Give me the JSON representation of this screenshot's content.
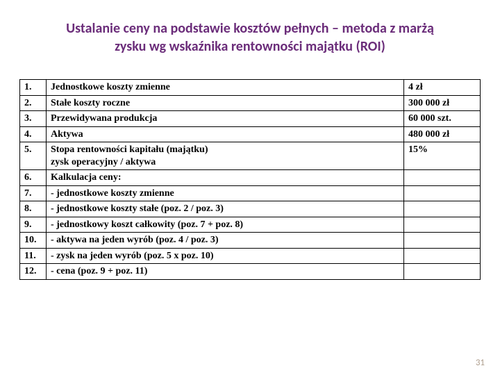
{
  "title": {
    "line1": "Ustalanie ceny na podstawie kosztów pełnych –   metoda z marżą",
    "line2": "zysku wg wskaźnika rentowności majątku (ROI)"
  },
  "rows": [
    {
      "num": "1.",
      "desc": "Jednostkowe koszty zmienne",
      "val": "  4 zł"
    },
    {
      "num": "2.",
      "desc": "Stałe koszty roczne",
      "val": "300 000 zł"
    },
    {
      "num": "3.",
      "desc": "Przewidywana produkcja",
      "val": "60 000 szt."
    },
    {
      "num": "4.",
      "desc": "Aktywa",
      "val": "480 000 zł"
    },
    {
      "num": "5.",
      "desc": "Stopa rentowności kapitału (majątku)\nzysk operacyjny / aktywa",
      "val": "15%"
    },
    {
      "num": "6.",
      "desc": "Kalkulacja ceny:",
      "val": ""
    },
    {
      "num": "7.",
      "desc": "- jednostkowe koszty zmienne",
      "val": ""
    },
    {
      "num": "8.",
      "desc": "- jednostkowe koszty stałe (poz. 2 / poz. 3)",
      "val": ""
    },
    {
      "num": "9.",
      "desc": "- jednostkowy koszt całkowity (poz. 7 + poz. 8)",
      "val": ""
    },
    {
      "num": "10.",
      "desc": "- aktywa na jeden wyrób (poz. 4 / poz. 3)",
      "val": ""
    },
    {
      "num": "11.",
      "desc": "- zysk na jeden wyrób (poz. 5 x poz. 10)",
      "val": ""
    },
    {
      "num": "12.",
      "desc": "- cena (poz. 9 + poz. 11)",
      "val": ""
    }
  ],
  "pageNumber": "31",
  "colors": {
    "title": "#6b2d7a",
    "border": "#000000",
    "text": "#000000",
    "pageNum": "#b0a090",
    "background": "#ffffff"
  }
}
